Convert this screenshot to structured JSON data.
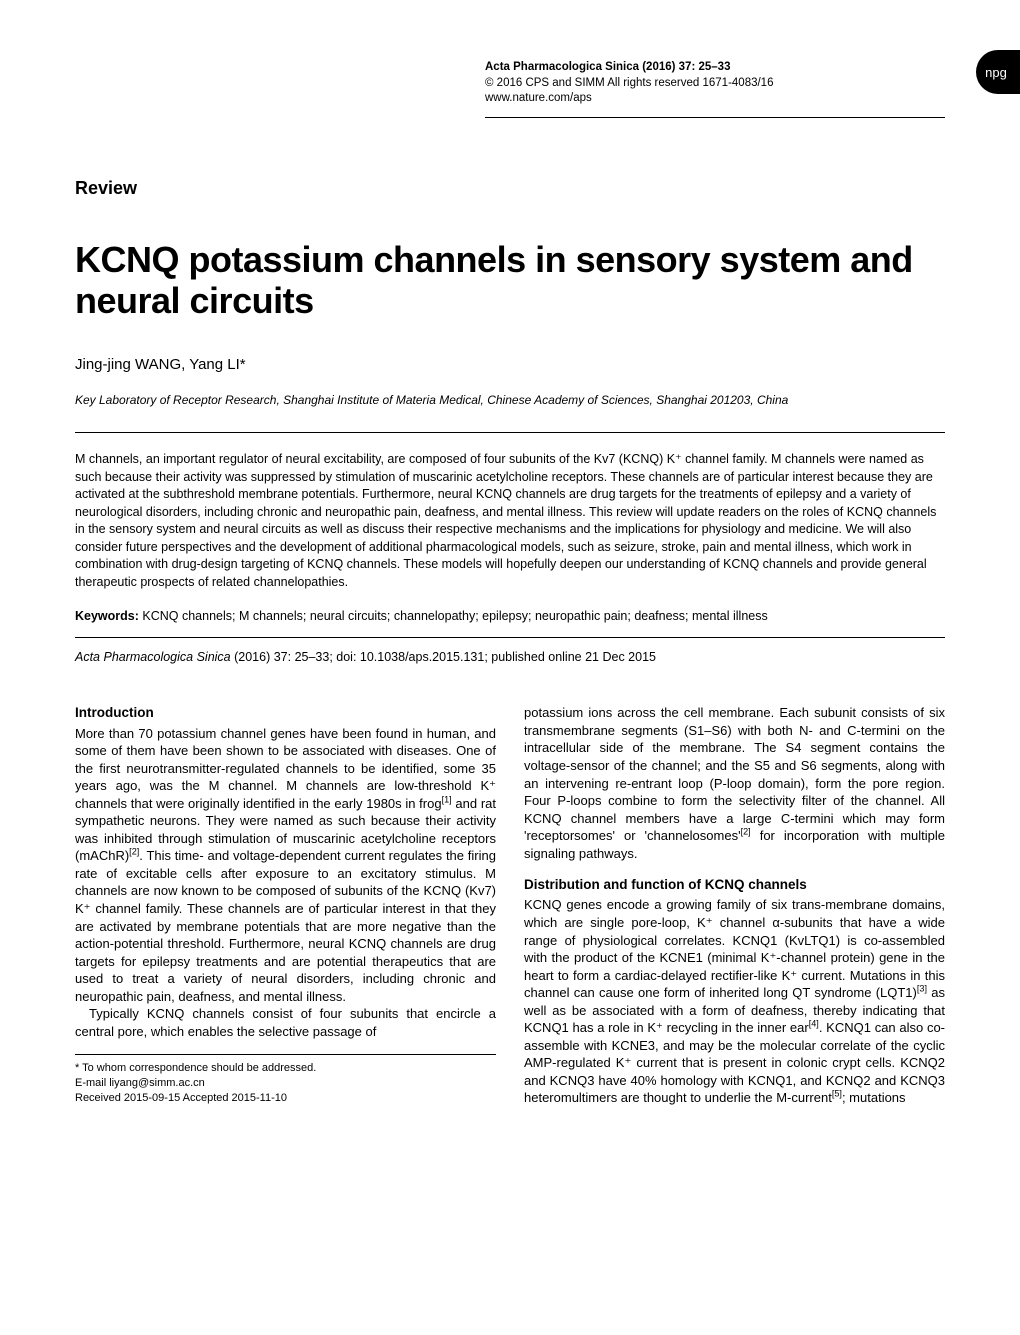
{
  "header": {
    "journal_line": "Acta Pharmacologica Sinica  (2016) 37: 25–33",
    "copyright_line": "© 2016 CPS and SIMM    All rights reserved 1671-4083/16",
    "url_line": "www.nature.com/aps",
    "badge": "npg"
  },
  "review_label": "Review",
  "title": "KCNQ potassium channels in sensory system and neural circuits",
  "authors": "Jing-jing WANG, Yang LI*",
  "affiliation": "Key Laboratory of Receptor Research, Shanghai Institute of Materia Medical, Chinese Academy of Sciences, Shanghai 201203, China",
  "abstract": "M channels, an important regulator of neural excitability, are composed of four subunits of the Kv7 (KCNQ) K⁺ channel family. M channels were named as such because their activity was suppressed by stimulation of muscarinic acetylcholine receptors. These channels are of particular interest because they are activated at the subthreshold membrane potentials. Furthermore, neural KCNQ channels are drug targets for the treatments of epilepsy and a variety of neurological disorders, including chronic and neuropathic pain, deafness, and mental illness. This review will update readers on the roles of KCNQ channels in the sensory system and neural circuits as well as discuss their respective mechanisms and the implications for physiology and medicine. We will also consider future perspectives and the development of additional pharmacological models, such as seizure, stroke, pain and mental illness, which work in combination with drug-design targeting of KCNQ channels. These models will hopefully deepen our understanding of KCNQ channels and provide general therapeutic prospects of related channelopathies.",
  "keywords_label": "Keywords:",
  "keywords": "  KCNQ channels; M channels; neural circuits; channelopathy; epilepsy; neuropathic pain; deafness; mental illness",
  "citation_italic": "Acta Pharmacologica Sinica",
  "citation_rest": " (2016) 37: 25–33; doi: 10.1038/aps.2015.131; published online 21 Dec 2015",
  "left_col": {
    "intro_heading": "Introduction",
    "intro_para1": "More than 70 potassium channel genes have been found in human, and some of them have been shown to be associated with diseases. One of the first neurotransmitter-regulated channels to be identified, some 35 years ago, was the M channel. M channels are low-threshold K⁺ channels that were originally identified in the early 1980s in frog[1] and rat sympathetic neurons. They were named as such because their activity was inhibited through stimulation of muscarinic acetylcholine receptors (mAChR)[2]. This time- and voltage-dependent current regulates the firing rate of excitable cells after exposure to an excitatory stimulus. M channels are now known to be composed of subunits of the KCNQ (Kv7) K⁺ channel family. These channels are of particular interest in that they are activated by membrane potentials that are more negative than the action-potential threshold. Furthermore, neural KCNQ channels are drug targets for epilepsy treatments and are potential therapeutics that are used to treat a variety of neural disorders, including chronic and neuropathic pain, deafness, and mental illness.",
    "intro_para2": "Typically KCNQ channels consist of four subunits that encircle a central pore, which enables the selective passage of",
    "footnote_corr": "* To whom correspondence should be addressed.",
    "footnote_email": "E-mail liyang@simm.ac.cn",
    "footnote_dates": "Received 2015-09-15    Accepted 2015-11-10"
  },
  "right_col": {
    "para1": "potassium ions across the cell membrane. Each subunit consists of six transmembrane segments (S1–S6) with both N- and C-termini on the intracellular side of the membrane. The S4 segment contains the voltage-sensor of the channel; and the S5 and S6 segments, along with an intervening re-entrant loop (P-loop domain), form the pore region. Four P-loops combine to form the selectivity filter of the channel. All KCNQ channel members have a large C-termini which may form 'receptorsomes' or 'channelosomes'[2] for incorporation with multiple signaling pathways.",
    "dist_heading": "Distribution and function of KCNQ channels",
    "dist_para": "KCNQ genes encode a growing family of six trans-membrane domains, which are single pore-loop, K⁺ channel α-subunits that have a wide range of physiological correlates. KCNQ1 (KvLTQ1) is co-assembled with the product of the KCNE1 (minimal K⁺-channel protein) gene in the heart to form a cardiac-delayed rectifier-like K⁺ current. Mutations in this channel can cause one form of inherited long QT syndrome (LQT1)[3] as well as be associated with a form of deafness, thereby indicating that KCNQ1 has a role in K⁺ recycling in the inner ear[4]. KCNQ1 can also co-assemble with KCNE3, and may be the molecular correlate of the cyclic AMP-regulated K⁺ current that is present in colonic crypt cells. KCNQ2 and KCNQ3 have 40% homology with KCNQ1, and KCNQ2 and KCNQ3 heteromultimers are thought to underlie the M-current[5]; mutations"
  }
}
